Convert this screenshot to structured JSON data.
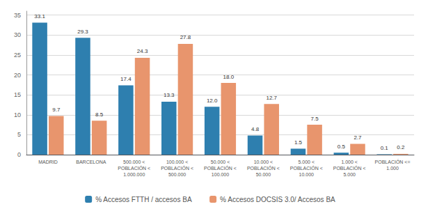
{
  "chart_data": {
    "type": "bar",
    "categories": [
      "MADRID",
      "BARCELONA",
      "500.000 <\nPOBLACIÓN <\n1.000.000",
      "100.000 <\nPOBLACIÓN <\n500.000",
      "50.000 <\nPOBLACIÓN <\n100.000",
      "10.000 <\nPOBLACIÓN <\n50.000",
      "5.000 <\nPOBLACIÓN <\n10.000",
      "1.000 <\nPOBLACIÓN <\n5.000",
      "POBLACIÓN <=\n1.000"
    ],
    "series": [
      {
        "name": "% Accesos FTTH / accesos BA",
        "color": "#2e7faf",
        "values": [
          33.1,
          29.3,
          17.4,
          13.3,
          12.0,
          4.8,
          1.5,
          0.5,
          0.1
        ],
        "value_labels": [
          "33.1",
          "29.3",
          "17.4",
          "13.3",
          "12.0",
          "4.8",
          "1.5",
          "0.5",
          "0.1"
        ]
      },
      {
        "name": "% Accesos DOCSIS 3.0/ Accesos BA",
        "color": "#e8956d",
        "values": [
          9.7,
          8.5,
          24.3,
          27.8,
          18.0,
          12.7,
          7.5,
          2.7,
          0.2
        ],
        "value_labels": [
          "9.7",
          "8.5",
          "24.3",
          "27.8",
          "18.0",
          "12.7",
          "7.5",
          "2.7",
          "0.2"
        ]
      }
    ],
    "ylim": [
      0,
      36
    ],
    "yticks": [
      0,
      5,
      10,
      15,
      20,
      25,
      30,
      35
    ],
    "grid": true,
    "data_labels": true,
    "legend": "bottom"
  }
}
